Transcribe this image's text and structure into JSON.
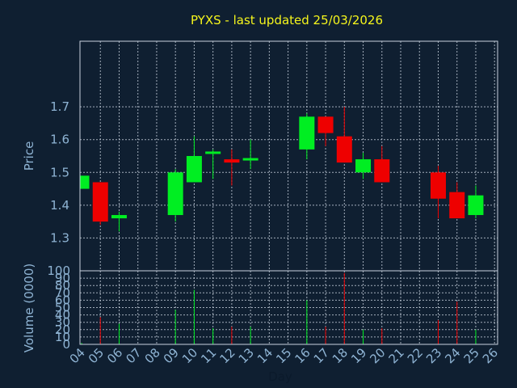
{
  "chart_data": [
    {
      "type": "candlestick",
      "title": "PYXS - last updated 25/03/2026",
      "ylabel": "Price",
      "ylim": [
        1.2,
        1.9
      ],
      "yticks": [
        "1.3",
        "1.4",
        "1.5",
        "1.6",
        "1.7"
      ],
      "grid": true,
      "colors": {
        "up": "#00ee22",
        "down": "#ee0000",
        "grid": "#c8d2de",
        "background": "#0f1f31",
        "text": "#8fb4d4",
        "title": "#f5f51c"
      },
      "x_labels": [
        "04",
        "05",
        "06",
        "07",
        "08",
        "09",
        "10",
        "11",
        "12",
        "13",
        "14",
        "15",
        "16",
        "17",
        "18",
        "19",
        "20",
        "21",
        "22",
        "23",
        "24",
        "25",
        "26"
      ],
      "candles": [
        {
          "day": "04",
          "open": 1.45,
          "close": 1.49,
          "high": 1.49,
          "low": 1.45
        },
        {
          "day": "05",
          "open": 1.47,
          "close": 1.35,
          "high": 1.47,
          "low": 1.34
        },
        {
          "day": "06",
          "open": 1.36,
          "close": 1.37,
          "high": 1.38,
          "low": 1.32
        },
        {
          "day": "09",
          "open": 1.37,
          "close": 1.5,
          "high": 1.51,
          "low": 1.35
        },
        {
          "day": "10",
          "open": 1.47,
          "close": 1.55,
          "high": 1.61,
          "low": 1.47
        },
        {
          "day": "11",
          "open": 1.56,
          "close": 1.56,
          "high": 1.57,
          "low": 1.48
        },
        {
          "day": "12",
          "open": 1.54,
          "close": 1.53,
          "high": 1.57,
          "low": 1.46
        },
        {
          "day": "13",
          "open": 1.54,
          "close": 1.54,
          "high": 1.6,
          "low": 1.51
        },
        {
          "day": "16",
          "open": 1.57,
          "close": 1.67,
          "high": 1.68,
          "low": 1.54
        },
        {
          "day": "17",
          "open": 1.67,
          "close": 1.62,
          "high": 1.67,
          "low": 1.58
        },
        {
          "day": "18",
          "open": 1.61,
          "close": 1.53,
          "high": 1.7,
          "low": 1.53
        },
        {
          "day": "19",
          "open": 1.5,
          "close": 1.54,
          "high": 1.56,
          "low": 1.48
        },
        {
          "day": "20",
          "open": 1.54,
          "close": 1.47,
          "high": 1.58,
          "low": 1.47
        },
        {
          "day": "23",
          "open": 1.5,
          "close": 1.42,
          "high": 1.52,
          "low": 1.36
        },
        {
          "day": "24",
          "open": 1.44,
          "close": 1.36,
          "high": 1.47,
          "low": 1.36
        },
        {
          "day": "25",
          "open": 1.37,
          "close": 1.43,
          "high": 1.46,
          "low": 1.36
        }
      ]
    },
    {
      "type": "bar",
      "ylabel": "Volume (0000)",
      "xlabel": "Day",
      "ylim": [
        0,
        100
      ],
      "yticks": [
        "0",
        "10",
        "20",
        "30",
        "40",
        "50",
        "60",
        "70",
        "80",
        "90",
        "100"
      ],
      "x_labels": [
        "04",
        "05",
        "06",
        "07",
        "08",
        "09",
        "10",
        "11",
        "12",
        "13",
        "14",
        "15",
        "16",
        "17",
        "18",
        "19",
        "20",
        "21",
        "22",
        "23",
        "24",
        "25",
        "26"
      ],
      "volumes": [
        {
          "day": "04",
          "value": 2,
          "direction": "up"
        },
        {
          "day": "05",
          "value": 37,
          "direction": "down"
        },
        {
          "day": "06",
          "value": 28,
          "direction": "up"
        },
        {
          "day": "09",
          "value": 47,
          "direction": "up"
        },
        {
          "day": "10",
          "value": 74,
          "direction": "up"
        },
        {
          "day": "11",
          "value": 22,
          "direction": "up"
        },
        {
          "day": "12",
          "value": 24,
          "direction": "down"
        },
        {
          "day": "13",
          "value": 24,
          "direction": "up"
        },
        {
          "day": "16",
          "value": 60,
          "direction": "up"
        },
        {
          "day": "17",
          "value": 24,
          "direction": "down"
        },
        {
          "day": "18",
          "value": 97,
          "direction": "down"
        },
        {
          "day": "19",
          "value": 20,
          "direction": "up"
        },
        {
          "day": "20",
          "value": 22,
          "direction": "down"
        },
        {
          "day": "23",
          "value": 33,
          "direction": "down"
        },
        {
          "day": "24",
          "value": 58,
          "direction": "down"
        },
        {
          "day": "25",
          "value": 20,
          "direction": "up"
        }
      ]
    }
  ]
}
